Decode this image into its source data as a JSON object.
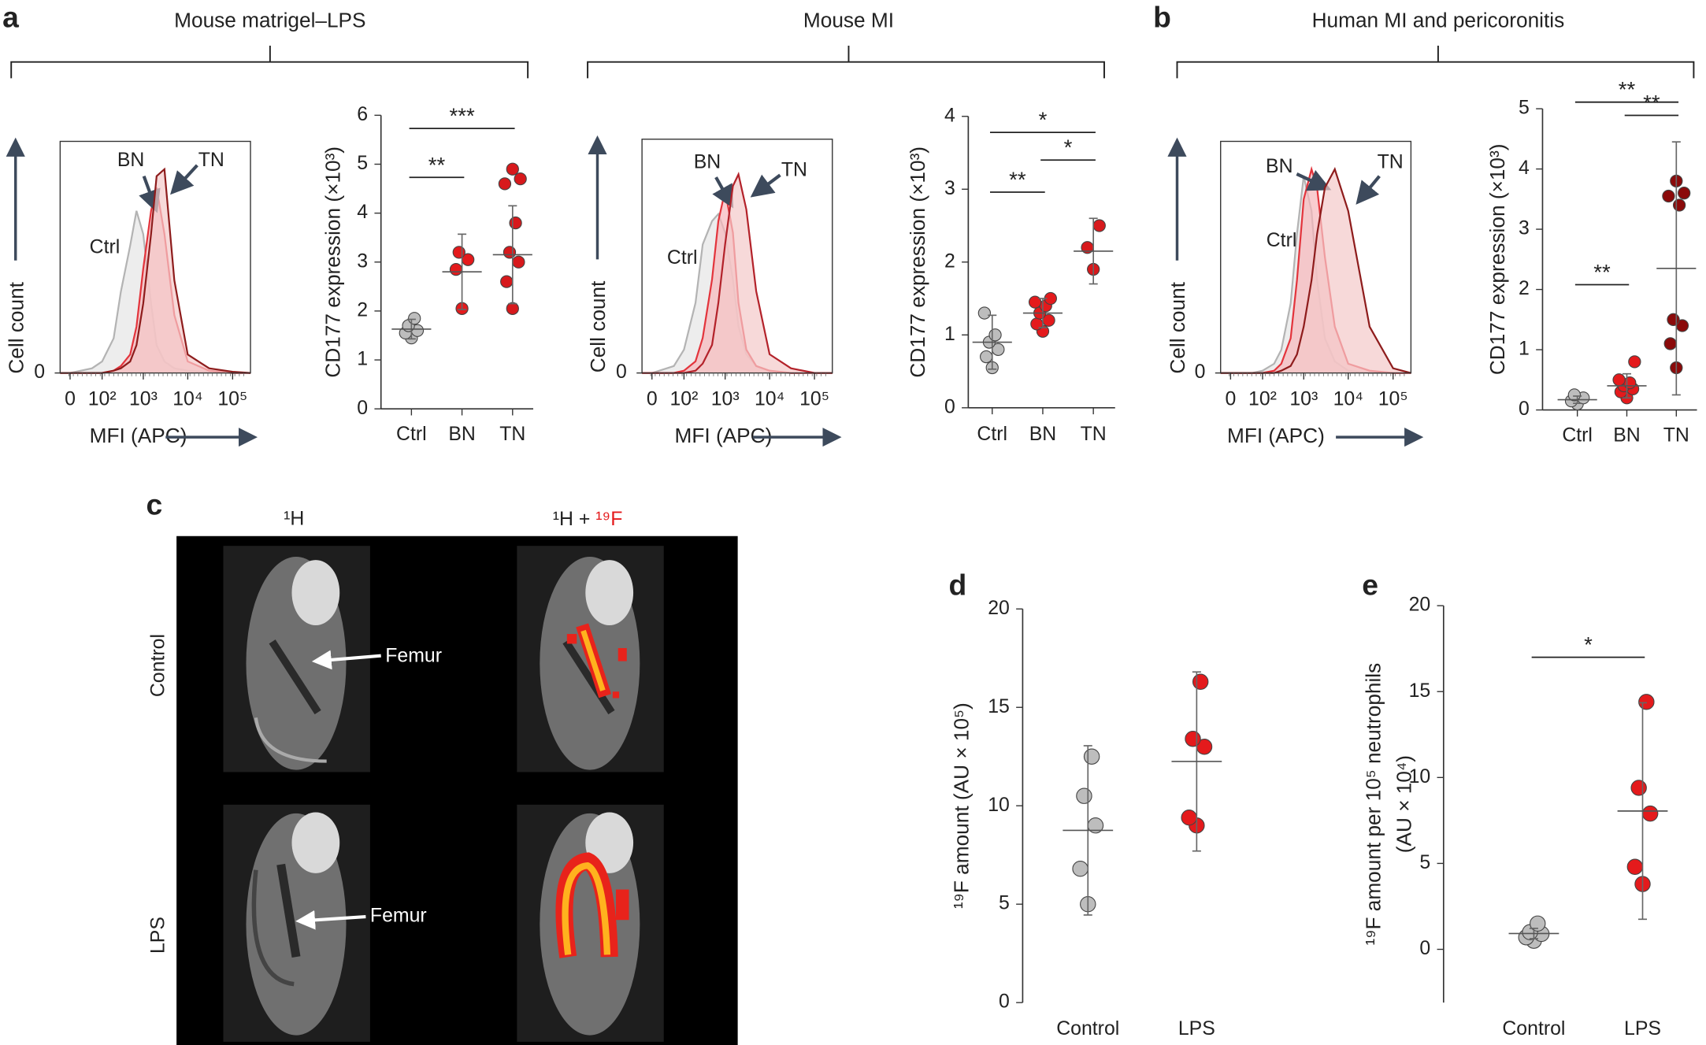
{
  "panel_labels": [
    "a",
    "b",
    "c",
    "d",
    "e"
  ],
  "section_titles": [
    "Mouse matrigel–LPS",
    "Mouse MI",
    "Human MI and pericoronitis"
  ],
  "image_panel": {
    "columns": [
      "¹H",
      "¹H + ",
      "¹⁹F"
    ],
    "rows": [
      "Control",
      "LPS"
    ],
    "annotations": [
      "Femur",
      "Femur"
    ]
  },
  "chart_data": [
    {
      "type": "histogram-overlay",
      "xlabel": "MFI (APC)",
      "ylabel": "Cell count",
      "xscale": "biexponential",
      "x": [
        -16,
        0,
        50,
        100,
        200,
        300,
        500,
        700,
        1000,
        1500,
        2000,
        3000,
        5000,
        10000,
        30000,
        100000,
        250000
      ],
      "series": [
        {
          "name": "Ctrl",
          "color": "#b3b3b3",
          "fill": "#e6e6e6",
          "values": [
            0,
            0,
            2,
            5,
            15,
            35,
            55,
            70,
            60,
            30,
            12,
            5,
            2,
            1,
            0.5,
            0,
            0
          ]
        },
        {
          "name": "BN",
          "color": "#e3343c",
          "fill": "#f6b7bb",
          "values": [
            0,
            0,
            0,
            0,
            1,
            3,
            8,
            20,
            45,
            70,
            80,
            60,
            25,
            5,
            1,
            0,
            0
          ]
        },
        {
          "name": "TN",
          "color": "#8e1c1c",
          "fill": "#f3c9c9",
          "values": [
            0,
            0,
            0,
            0,
            1,
            2,
            5,
            12,
            30,
            60,
            85,
            88,
            40,
            8,
            2,
            0.5,
            0
          ]
        }
      ],
      "xlim": [
        -16,
        250000
      ],
      "xticks": [
        0,
        {
          "value": 100,
          "label": "10²"
        },
        {
          "value": 1000,
          "label": "10³"
        },
        {
          "value": 10000,
          "label": "10⁴"
        },
        {
          "value": 100000,
          "label": "10⁵"
        }
      ],
      "ylim": [
        0,
        100
      ],
      "yticks": [
        0
      ]
    },
    {
      "type": "dot",
      "ylabel": "CD177 expression (×10³)",
      "categories": [
        "Ctrl",
        "BN",
        "TN"
      ],
      "colors": [
        "#bdbdbd",
        "#e41a1c",
        "#d7191c"
      ],
      "points": [
        [
          1.45,
          1.55,
          1.6,
          1.7,
          1.85
        ],
        [
          2.05,
          2.85,
          3.05,
          3.2
        ],
        [
          2.05,
          2.6,
          3.0,
          3.2,
          3.8,
          4.6,
          4.7,
          4.9
        ]
      ],
      "means": [
        1.63,
        2.8,
        3.15
      ],
      "errors": [
        0.2,
        0.77,
        1.0
      ],
      "significance": [
        {
          "label": "**",
          "from": 0,
          "to": 1,
          "y": 4.73
        },
        {
          "label": "***",
          "from": 0,
          "to": 2,
          "y": 5.73
        }
      ],
      "ylim": [
        0,
        6
      ],
      "yticks": [
        0,
        1,
        2,
        3,
        4,
        5,
        6
      ],
      "frame": "left-bottom"
    },
    {
      "type": "histogram-overlay",
      "xlabel": "MFI (APC)",
      "ylabel": "Cell count",
      "xscale": "biexponential",
      "x": [
        -16,
        0,
        50,
        100,
        200,
        300,
        500,
        700,
        1000,
        1500,
        2000,
        3000,
        5000,
        10000,
        30000,
        100000,
        250000
      ],
      "series": [
        {
          "name": "Ctrl",
          "color": "#b3b3b3",
          "fill": "#e6e6e6",
          "values": [
            0,
            0,
            3,
            10,
            30,
            55,
            65,
            68,
            60,
            40,
            20,
            8,
            3,
            1,
            0,
            0,
            0
          ]
        },
        {
          "name": "BN",
          "color": "#e3343c",
          "fill": "#f6b7bb",
          "values": [
            0,
            0,
            0,
            1,
            5,
            15,
            40,
            65,
            78,
            60,
            30,
            10,
            3,
            1,
            0,
            0,
            0
          ]
        },
        {
          "name": "TN",
          "color": "#b3222a",
          "fill": "#f3c9c9",
          "values": [
            0,
            0,
            0,
            0,
            1,
            4,
            12,
            30,
            55,
            80,
            85,
            70,
            35,
            8,
            2,
            0,
            0
          ]
        }
      ],
      "xlim": [
        -16,
        250000
      ],
      "xticks": [
        0,
        {
          "value": 100,
          "label": "10²"
        },
        {
          "value": 1000,
          "label": "10³"
        },
        {
          "value": 10000,
          "label": "10⁴"
        },
        {
          "value": 100000,
          "label": "10⁵"
        }
      ],
      "ylim": [
        0,
        100
      ],
      "yticks": [
        0
      ]
    },
    {
      "type": "dot",
      "ylabel": "CD177 expression (×10³)",
      "categories": [
        "Ctrl",
        "BN",
        "TN"
      ],
      "colors": [
        "#bdbdbd",
        "#e41a1c",
        "#d7191c"
      ],
      "points": [
        [
          0.55,
          0.7,
          0.8,
          0.9,
          1.0,
          1.3
        ],
        [
          1.05,
          1.15,
          1.2,
          1.3,
          1.4,
          1.45,
          1.5
        ],
        [
          1.9,
          2.2,
          2.5
        ]
      ],
      "means": [
        0.9,
        1.3,
        2.15
      ],
      "errors": [
        0.37,
        0.2,
        0.45
      ],
      "significance": [
        {
          "label": "*",
          "from": 0,
          "to": 2,
          "y": 3.78
        },
        {
          "label": "**",
          "from": 0,
          "to": 1,
          "y": 2.96
        },
        {
          "label": "*",
          "from": 1,
          "to": 2,
          "y": 3.4
        }
      ],
      "ylim": [
        0,
        4
      ],
      "yticks": [
        0,
        1,
        2,
        3,
        4
      ],
      "frame": "left-bottom"
    },
    {
      "type": "histogram-overlay",
      "xlabel": "MFI (APC)",
      "ylabel": "Cell count",
      "xscale": "biexponential",
      "x": [
        -16,
        0,
        50,
        100,
        200,
        300,
        500,
        700,
        1000,
        1500,
        2000,
        3000,
        5000,
        10000,
        30000,
        100000,
        250000
      ],
      "series": [
        {
          "name": "Ctrl",
          "color": "#b3b3b3",
          "fill": "#e6e6e6",
          "values": [
            0,
            0,
            0,
            1,
            4,
            10,
            30,
            60,
            85,
            70,
            40,
            15,
            5,
            1,
            0,
            0,
            0
          ]
        },
        {
          "name": "BN",
          "color": "#e3343c",
          "fill": "#f6b7bb",
          "values": [
            0,
            0,
            0,
            0,
            1,
            4,
            15,
            40,
            75,
            88,
            80,
            50,
            20,
            4,
            1,
            0,
            0
          ]
        },
        {
          "name": "TN",
          "color": "#8e1c1c",
          "fill": "#f3c9c9",
          "values": [
            0,
            0,
            0,
            0,
            0,
            1,
            3,
            8,
            20,
            40,
            60,
            80,
            88,
            70,
            20,
            2,
            0
          ]
        }
      ],
      "xlim": [
        -16,
        250000
      ],
      "xticks": [
        0,
        {
          "value": 100,
          "label": "10²"
        },
        {
          "value": 1000,
          "label": "10³"
        },
        {
          "value": 10000,
          "label": "10⁴"
        },
        {
          "value": 100000,
          "label": "10⁵"
        }
      ],
      "ylim": [
        0,
        100
      ],
      "yticks": [
        0
      ]
    },
    {
      "type": "dot",
      "ylabel": "CD177 expression (×10³)",
      "categories": [
        "Ctrl",
        "BN",
        "TN"
      ],
      "colors": [
        "#bdbdbd",
        "#e41a1c",
        "#8b0a0a"
      ],
      "points": [
        [
          0.1,
          0.15,
          0.2,
          0.25
        ],
        [
          0.2,
          0.3,
          0.35,
          0.4,
          0.45,
          0.5,
          0.8
        ],
        [
          0.7,
          1.1,
          1.4,
          1.5,
          3.4,
          3.55,
          3.6,
          3.8
        ]
      ],
      "means": [
        0.17,
        0.4,
        2.35
      ],
      "errors": [
        0.06,
        0.2,
        2.1
      ],
      "significance": [
        {
          "label": "**",
          "from": 0,
          "to": 1,
          "y": 2.08
        },
        {
          "label": "**",
          "from": 0,
          "to": 2,
          "y": 5.11
        },
        {
          "label": "**",
          "from": 1,
          "to": 2,
          "y": 4.89
        }
      ],
      "ylim": [
        0,
        5
      ],
      "yticks": [
        0,
        1,
        2,
        3,
        4,
        5
      ],
      "frame": "left-bottom"
    },
    {
      "type": "dot",
      "ylabel": "¹⁹F amount (AU × 10⁵)",
      "categories": [
        "Control",
        "LPS"
      ],
      "colors": [
        "#bdbdbd",
        "#e41a1c"
      ],
      "points": [
        [
          5.0,
          6.8,
          9.0,
          10.5,
          12.5
        ],
        [
          9.0,
          9.4,
          13.0,
          13.4,
          16.3
        ]
      ],
      "means": [
        8.75,
        12.25
      ],
      "errors": [
        4.3,
        4.55
      ],
      "significance": [],
      "ylim": [
        0,
        20
      ],
      "yticks": [
        0,
        5,
        10,
        15,
        20
      ],
      "frame": "left"
    },
    {
      "type": "dot",
      "ylabel": [
        "¹⁹F amount per 10⁵ neutrophils",
        "(AU × 10⁴)"
      ],
      "categories": [
        "Control",
        "LPS"
      ],
      "colors": [
        "#bdbdbd",
        "#e41a1c"
      ],
      "points": [
        [
          0.5,
          0.7,
          0.9,
          1.0,
          1.5
        ],
        [
          3.8,
          4.8,
          7.9,
          9.4,
          14.4
        ]
      ],
      "means": [
        0.92,
        8.05
      ],
      "errors": [
        0.3,
        6.3
      ],
      "significance": [
        {
          "label": "*",
          "from": 0,
          "to": 1,
          "y": 17.0
        }
      ],
      "ylim": [
        -3.1,
        20
      ],
      "yticks": [
        0,
        5,
        10,
        15,
        20
      ],
      "frame": "left"
    }
  ]
}
